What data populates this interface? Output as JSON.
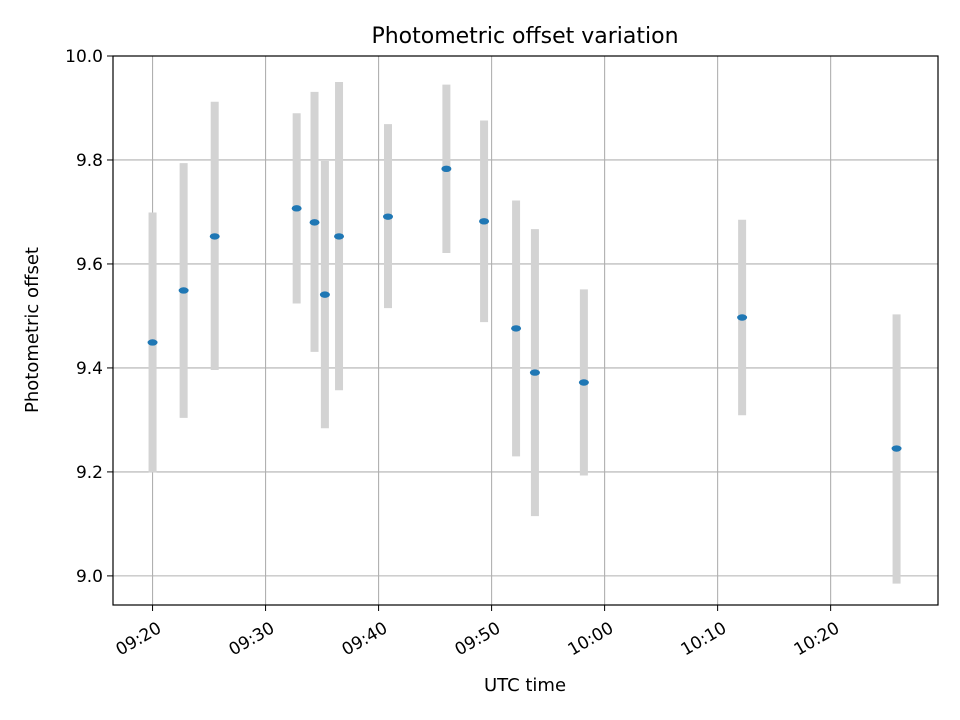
{
  "chart_data": {
    "type": "scatter",
    "title": "Photometric offset variation",
    "xlabel": "UTC time",
    "ylabel": "Photometric offset",
    "x_unit": "time of day (HH:MM:SS UTC)",
    "xlim": [
      "09:16:30",
      "10:29:30"
    ],
    "ylim": [
      8.944,
      10.0
    ],
    "x_ticks": [
      "09:20",
      "09:30",
      "09:40",
      "09:50",
      "10:00",
      "10:10",
      "10:20"
    ],
    "y_ticks": [
      "9.0",
      "9.2",
      "9.4",
      "9.6",
      "9.8",
      "10.0"
    ],
    "grid": true,
    "series": [
      {
        "marker_color": "#1f77b4",
        "errorbar_color": "#d3d3d3",
        "points": [
          {
            "x": "09:20:00",
            "y": 9.449,
            "ylow": 9.199,
            "yhigh": 9.699
          },
          {
            "x": "09:22:45",
            "y": 9.549,
            "ylow": 9.304,
            "yhigh": 9.794
          },
          {
            "x": "09:25:30",
            "y": 9.653,
            "ylow": 9.396,
            "yhigh": 9.912
          },
          {
            "x": "09:32:45",
            "y": 9.707,
            "ylow": 9.524,
            "yhigh": 9.89
          },
          {
            "x": "09:34:20",
            "y": 9.68,
            "ylow": 9.431,
            "yhigh": 9.931
          },
          {
            "x": "09:35:15",
            "y": 9.541,
            "ylow": 9.284,
            "yhigh": 9.798
          },
          {
            "x": "09:36:30",
            "y": 9.653,
            "ylow": 9.357,
            "yhigh": 9.95
          },
          {
            "x": "09:40:50",
            "y": 9.691,
            "ylow": 9.515,
            "yhigh": 9.869
          },
          {
            "x": "09:46:00",
            "y": 9.783,
            "ylow": 9.621,
            "yhigh": 9.945
          },
          {
            "x": "09:49:20",
            "y": 9.682,
            "ylow": 9.488,
            "yhigh": 9.876
          },
          {
            "x": "09:52:10",
            "y": 9.476,
            "ylow": 9.23,
            "yhigh": 9.722
          },
          {
            "x": "09:53:50",
            "y": 9.391,
            "ylow": 9.115,
            "yhigh": 9.667
          },
          {
            "x": "09:58:10",
            "y": 9.372,
            "ylow": 9.193,
            "yhigh": 9.551
          },
          {
            "x": "10:12:10",
            "y": 9.497,
            "ylow": 9.309,
            "yhigh": 9.685
          },
          {
            "x": "10:25:50",
            "y": 9.245,
            "ylow": 8.985,
            "yhigh": 9.503
          }
        ]
      }
    ]
  }
}
